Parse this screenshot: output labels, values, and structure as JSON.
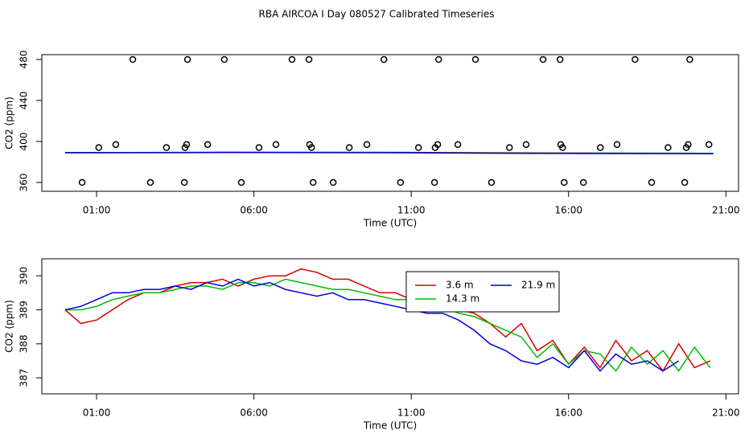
{
  "title": "RBA AIRCOA I  Day 080527  Calibrated Timeseries",
  "chart_data": [
    {
      "type": "line",
      "xlabel": "Time (UTC)",
      "ylabel": "CO2 (ppm)",
      "xlim": [
        -0.74,
        21.4
      ],
      "xticks": [
        {
          "value": 1,
          "label": "01:00"
        },
        {
          "value": 6,
          "label": "06:00"
        },
        {
          "value": 11,
          "label": "11:00"
        },
        {
          "value": 16,
          "label": "16:00"
        },
        {
          "value": 21,
          "label": "21:00"
        }
      ],
      "ylim": [
        351.4,
        484.7
      ],
      "yticks": [
        360,
        400,
        440,
        480
      ],
      "series": [
        {
          "type": "scatter",
          "color": "#000000",
          "x": [
            2.15,
            3.89,
            5.06,
            7.21,
            7.75,
            10.13,
            11.87,
            13.04,
            15.19,
            15.73,
            18.11,
            19.85,
            1.61,
            3.86,
            4.53,
            6.7,
            7.77,
            9.59,
            11.84,
            12.48,
            14.65,
            15.75,
            17.54,
            19.8,
            20.46,
            1.07,
            3.22,
            3.81,
            6.16,
            7.83,
            9.03,
            11.23,
            11.76,
            14.12,
            15.81,
            17.01,
            19.16,
            19.74,
            0.54,
            2.71,
            3.79,
            5.6,
            7.88,
            8.52,
            10.66,
            11.74,
            13.55,
            15.86,
            16.47,
            18.64,
            19.69
          ],
          "values": [
            480,
            480,
            480,
            480,
            480,
            480,
            480,
            480,
            480,
            480,
            480,
            480,
            397,
            397,
            397,
            397,
            397,
            397,
            397,
            397,
            397,
            397,
            397,
            397,
            397,
            394,
            394,
            394,
            394,
            394,
            394,
            394,
            394,
            394,
            394,
            394,
            394,
            394,
            360,
            360,
            360,
            360,
            360,
            360,
            360,
            360,
            360,
            360,
            360,
            360,
            360
          ]
        },
        {
          "type": "line",
          "color": "#dd0000",
          "x": [
            0,
            5,
            10,
            15,
            20.6
          ],
          "values": [
            389,
            389.5,
            389.4,
            388.8,
            388.5
          ]
        },
        {
          "type": "line",
          "color": "#00bb00",
          "x": [
            0,
            5,
            10,
            15,
            20.6
          ],
          "values": [
            389,
            389.3,
            389.2,
            388.6,
            388.5
          ]
        },
        {
          "type": "line",
          "color": "#0000dd",
          "x": [
            0,
            5,
            10,
            15,
            20.6
          ],
          "values": [
            389,
            389.2,
            389,
            388.3,
            388
          ]
        }
      ]
    },
    {
      "type": "line",
      "xlabel": "Time (UTC)",
      "ylabel": "CO2 (ppm)",
      "xlim": [
        -0.74,
        21.4
      ],
      "xticks": [
        {
          "value": 1,
          "label": "01:00"
        },
        {
          "value": 6,
          "label": "06:00"
        },
        {
          "value": 11,
          "label": "11:00"
        },
        {
          "value": 16,
          "label": "16:00"
        },
        {
          "value": 21,
          "label": "21:00"
        }
      ],
      "ylim": [
        386.53,
        390.5
      ],
      "yticks": [
        387,
        388,
        389,
        390
      ],
      "x": [
        0,
        0.5,
        1,
        1.5,
        2,
        2.5,
        3,
        3.5,
        4,
        4.5,
        5,
        5.5,
        6,
        6.5,
        7,
        7.5,
        8,
        8.5,
        9,
        9.5,
        10,
        10.5,
        11,
        11.5,
        12,
        12.5,
        13,
        13.5,
        14,
        14.5,
        15,
        15.5,
        16,
        16.5,
        17,
        17.5,
        18,
        18.5,
        19,
        19.5,
        20,
        20.5
      ],
      "series": [
        {
          "name": "3.6 m",
          "color": "#dd0000",
          "values": [
            389.0,
            388.6,
            388.7,
            389.0,
            389.3,
            389.5,
            389.5,
            389.7,
            389.8,
            389.8,
            389.9,
            389.7,
            389.9,
            390.0,
            390.0,
            390.2,
            390.1,
            389.9,
            389.9,
            389.7,
            389.5,
            389.5,
            389.3,
            389.1,
            389.3,
            389.0,
            388.9,
            388.6,
            388.2,
            388.6,
            387.8,
            388.1,
            387.4,
            387.9,
            387.3,
            388.1,
            387.5,
            387.8,
            387.2,
            388.0,
            387.3,
            387.5
          ]
        },
        {
          "name": "14.3 m",
          "color": "#00bb00",
          "values": [
            389.0,
            389.0,
            389.1,
            389.3,
            389.4,
            389.5,
            389.5,
            389.6,
            389.7,
            389.7,
            389.6,
            389.8,
            389.8,
            389.7,
            389.9,
            389.8,
            389.7,
            389.6,
            389.6,
            389.5,
            389.4,
            389.3,
            389.3,
            389.2,
            389.1,
            388.9,
            388.8,
            388.6,
            388.4,
            388.2,
            387.6,
            388.0,
            387.4,
            387.8,
            387.7,
            387.2,
            387.9,
            387.4,
            387.8,
            387.2,
            387.9,
            387.3
          ]
        },
        {
          "name": "21.9 m",
          "color": "#0000dd",
          "values": [
            389.0,
            389.1,
            389.3,
            389.5,
            389.5,
            389.6,
            389.6,
            389.7,
            389.6,
            389.8,
            389.7,
            389.9,
            389.7,
            389.8,
            389.6,
            389.5,
            389.4,
            389.5,
            389.3,
            389.3,
            389.2,
            389.1,
            389.0,
            388.9,
            388.9,
            388.7,
            388.4,
            388.0,
            387.8,
            387.5,
            387.4,
            387.6,
            387.3,
            387.8,
            387.2,
            387.7,
            387.4,
            387.5,
            387.2,
            387.5,
            null,
            null
          ]
        }
      ]
    }
  ]
}
